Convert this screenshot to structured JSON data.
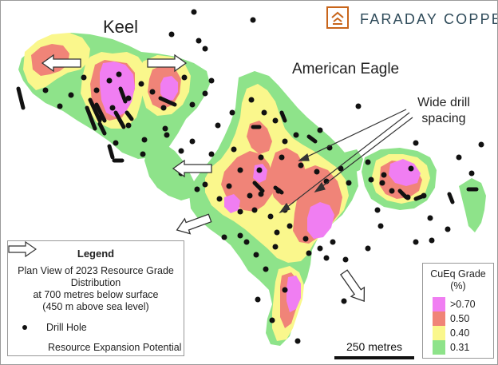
{
  "logo": {
    "name": "FARADAY COPPER"
  },
  "labels": {
    "keel": "Keel",
    "american_eagle": "American Eagle",
    "wide_drill_spacing": "Wide drill\nspacing"
  },
  "legend": {
    "title": "Legend",
    "description": "Plan View of 2023 Resource Grade\nDistribution\nat 700 metres below surface\n(450 m above sea level)",
    "drill_hole": "Drill Hole",
    "expansion": "Resource Expansion Potential"
  },
  "grade_legend": {
    "title": "CuEq Grade\n(%)",
    "items": [
      {
        "label": ">0.70",
        "color": "#f07ef2"
      },
      {
        "label": "0.50",
        "color": "#f08478"
      },
      {
        "label": "0.40",
        "color": "#faf78c"
      },
      {
        "label": "0.31",
        "color": "#8ee38a"
      }
    ]
  },
  "scale": {
    "label": "250 metres"
  },
  "colors": {
    "accent": "#c8651b",
    "dark": "#2f4b5a",
    "drill": "#111111"
  }
}
